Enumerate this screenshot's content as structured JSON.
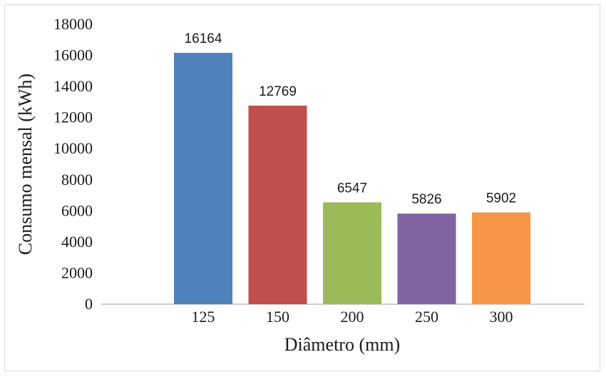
{
  "chart_data": {
    "type": "bar",
    "categories": [
      "125",
      "150",
      "200",
      "250",
      "300"
    ],
    "values": [
      16164,
      12769,
      6547,
      5826,
      5902
    ],
    "data_labels": [
      "16164",
      "12769",
      "6547",
      "5826",
      "5902"
    ],
    "colors": [
      "#4f81bd",
      "#c0504d",
      "#9bbb59",
      "#8064a2",
      "#f79646"
    ],
    "xlabel": "Diâmetro (mm)",
    "ylabel": "Consumo mensal (kWh)",
    "ylim": [
      0,
      18000
    ],
    "yticks": [
      "0",
      "2000",
      "4000",
      "6000",
      "8000",
      "10000",
      "12000",
      "14000",
      "16000",
      "18000"
    ],
    "grid": false,
    "legend": "none"
  }
}
